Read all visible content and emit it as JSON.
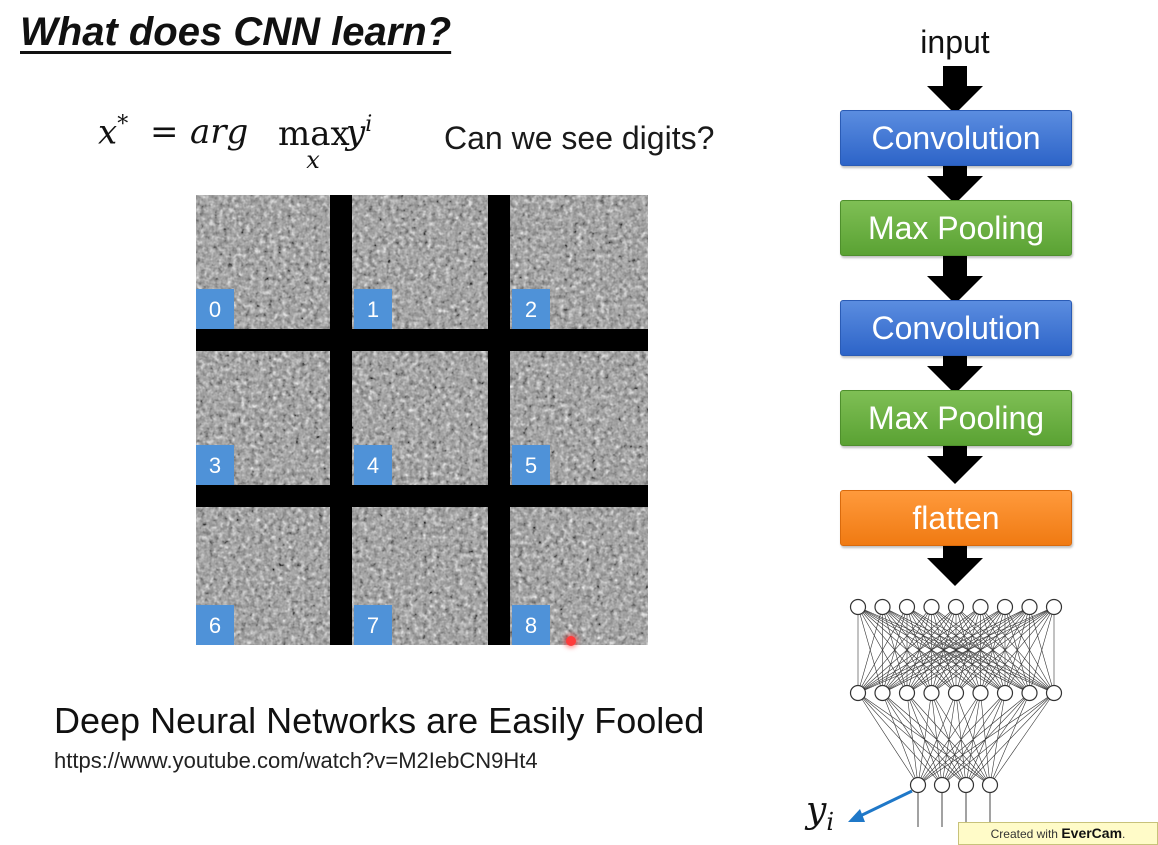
{
  "title": "What does CNN learn?",
  "formula": {
    "lhs": "x",
    "lhs_sup": "*",
    "equals": "=",
    "arg": "arg",
    "max": "max",
    "max_sub": "x",
    "rhs": "y",
    "rhs_sup": "i"
  },
  "question": "Can we see digits?",
  "digit_grid": {
    "cells": [
      "0",
      "1",
      "2",
      "3",
      "4",
      "5",
      "6",
      "7",
      "8"
    ],
    "label_color": "#4f92d8",
    "divider_color": "#000000"
  },
  "caption": "Deep Neural Networks are Easily Fooled",
  "url": "https://www.youtube.com/watch?v=M2IebCN9Ht4",
  "flow": {
    "input_label": "input",
    "blocks": [
      {
        "label": "Convolution",
        "kind": "conv"
      },
      {
        "label": "Max Pooling",
        "kind": "pool"
      },
      {
        "label": "Convolution",
        "kind": "conv"
      },
      {
        "label": "Max Pooling",
        "kind": "pool"
      },
      {
        "label": "flatten",
        "kind": "flat"
      }
    ],
    "colors": {
      "conv": "#3a6fd0",
      "pool": "#6ab042",
      "flat": "#f7891f"
    }
  },
  "network": {
    "layers": [
      9,
      9,
      4
    ],
    "output_label": "y",
    "output_sub": "i",
    "output_arrow_color": "#1f78c8"
  },
  "watermark": {
    "prefix": "Created with",
    "brand": "EverCam",
    "suffix": "."
  }
}
